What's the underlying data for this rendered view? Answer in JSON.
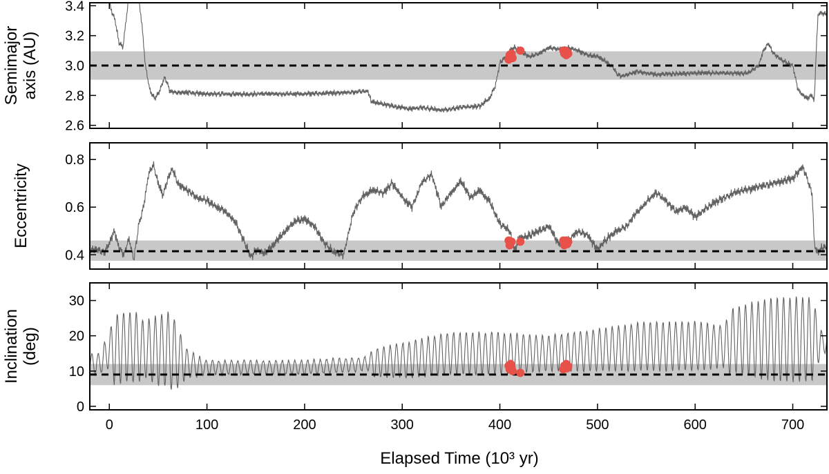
{
  "chart_data": [
    {
      "type": "line",
      "ylabel_lines": [
        "Semimajor",
        "axis (AU)"
      ],
      "ylim": [
        2.58,
        3.42
      ],
      "yticks": [
        2.6,
        2.8,
        3.0,
        3.2,
        3.4
      ],
      "tick_labels": [
        "2.6",
        "2.8",
        "3.0",
        "3.2",
        "3.4"
      ],
      "reference": {
        "value": 3.0,
        "band": [
          2.905,
          3.095
        ]
      },
      "series": {
        "name": "semimajor axis",
        "x": [
          -10,
          -3,
          0,
          3,
          6,
          10,
          14,
          17,
          20,
          25,
          28,
          30,
          33,
          37,
          42,
          47,
          52,
          57,
          62,
          70,
          80,
          100,
          150,
          200,
          250,
          265,
          268,
          280,
          300,
          310,
          320,
          340,
          360,
          380,
          385,
          390,
          392,
          395,
          400,
          405,
          410,
          415,
          420,
          430,
          440,
          450,
          460,
          470,
          480,
          490,
          500,
          510,
          517,
          520,
          525,
          540,
          560,
          600,
          640,
          655,
          665,
          670,
          675,
          680,
          690,
          700,
          705,
          710,
          715,
          720,
          722,
          724,
          726
        ],
        "y": [
          3.45,
          3.45,
          3.42,
          3.35,
          3.3,
          3.15,
          3.12,
          3.3,
          3.45,
          3.45,
          3.45,
          3.45,
          3.3,
          3.0,
          2.82,
          2.78,
          2.84,
          2.92,
          2.83,
          2.82,
          2.82,
          2.81,
          2.81,
          2.81,
          2.82,
          2.83,
          2.76,
          2.74,
          2.72,
          2.71,
          2.72,
          2.7,
          2.72,
          2.73,
          2.76,
          2.78,
          2.82,
          2.85,
          3.02,
          3.05,
          3.1,
          3.12,
          3.1,
          3.06,
          3.08,
          3.12,
          3.11,
          3.12,
          3.1,
          3.07,
          3.06,
          3.02,
          2.98,
          2.94,
          2.93,
          2.96,
          2.94,
          2.95,
          2.95,
          2.95,
          3.0,
          3.1,
          3.15,
          3.08,
          3.03,
          3.0,
          2.85,
          2.8,
          2.78,
          2.8,
          2.75,
          3.1,
          3.35
        ],
        "noise": 0.012
      },
      "close_approaches": {
        "x": [
          409,
          410,
          411,
          412,
          413,
          421,
          465,
          466,
          467,
          468,
          469,
          470
        ],
        "y": [
          3.04,
          3.07,
          3.06,
          3.08,
          3.05,
          3.1,
          3.1,
          3.08,
          3.1,
          3.07,
          3.09,
          3.08
        ]
      }
    },
    {
      "type": "line",
      "ylabel_lines": [
        "Eccentricity"
      ],
      "ylim": [
        0.34,
        0.87
      ],
      "yticks": [
        0.4,
        0.6,
        0.8
      ],
      "tick_labels": [
        "0.4",
        "0.6",
        "0.8"
      ],
      "reference": {
        "value": 0.415,
        "band": [
          0.375,
          0.46
        ]
      },
      "series": {
        "name": "eccentricity",
        "x": [
          -10,
          -5,
          0,
          5,
          10,
          15,
          20,
          25,
          30,
          35,
          40,
          45,
          50,
          55,
          60,
          65,
          70,
          80,
          90,
          100,
          110,
          120,
          130,
          140,
          145,
          150,
          160,
          170,
          180,
          190,
          200,
          210,
          220,
          230,
          240,
          250,
          260,
          270,
          280,
          290,
          300,
          310,
          320,
          330,
          340,
          350,
          360,
          370,
          380,
          390,
          400,
          410,
          415,
          420,
          430,
          440,
          450,
          460,
          470,
          480,
          490,
          500,
          510,
          520,
          530,
          540,
          550,
          560,
          570,
          580,
          590,
          600,
          620,
          640,
          660,
          680,
          700,
          710,
          715,
          720,
          722,
          725,
          730
        ],
        "y": [
          0.42,
          0.41,
          0.45,
          0.5,
          0.43,
          0.4,
          0.47,
          0.38,
          0.52,
          0.6,
          0.73,
          0.78,
          0.7,
          0.65,
          0.72,
          0.76,
          0.7,
          0.67,
          0.64,
          0.63,
          0.6,
          0.58,
          0.53,
          0.44,
          0.39,
          0.42,
          0.41,
          0.45,
          0.5,
          0.54,
          0.55,
          0.52,
          0.45,
          0.41,
          0.4,
          0.58,
          0.65,
          0.67,
          0.66,
          0.7,
          0.64,
          0.6,
          0.7,
          0.74,
          0.6,
          0.66,
          0.71,
          0.64,
          0.67,
          0.62,
          0.53,
          0.5,
          0.42,
          0.47,
          0.48,
          0.5,
          0.52,
          0.45,
          0.46,
          0.5,
          0.48,
          0.42,
          0.47,
          0.5,
          0.52,
          0.58,
          0.62,
          0.66,
          0.63,
          0.58,
          0.6,
          0.56,
          0.62,
          0.66,
          0.68,
          0.7,
          0.72,
          0.77,
          0.72,
          0.65,
          0.45,
          0.41,
          0.43
        ],
        "noise": 0.012
      },
      "close_approaches": {
        "x": [
          409,
          410,
          411,
          412,
          421,
          465,
          466,
          467,
          468,
          469,
          470
        ],
        "y": [
          0.46,
          0.44,
          0.45,
          0.455,
          0.455,
          0.46,
          0.44,
          0.45,
          0.46,
          0.445,
          0.455
        ]
      }
    },
    {
      "type": "line",
      "ylabel_lines": [
        "Inclination",
        "(deg)"
      ],
      "ylim": [
        -1,
        35
      ],
      "yticks": [
        0,
        10,
        20,
        30
      ],
      "tick_labels": [
        "0",
        "10",
        "20",
        "30"
      ],
      "reference": {
        "value": 9,
        "band": [
          6,
          12
        ]
      },
      "series": {
        "name": "inclination",
        "centers_x": [
          -10,
          0,
          20,
          40,
          60,
          80,
          100,
          150,
          200,
          260,
          300,
          350,
          400,
          450,
          500,
          550,
          600,
          630,
          640,
          680,
          720,
          730
        ],
        "centers_y": [
          12,
          16,
          17,
          16,
          16,
          12,
          11,
          11,
          11,
          12,
          13,
          15,
          15,
          15,
          16,
          17,
          17,
          17,
          19,
          19,
          19,
          18
        ],
        "amp_x": [
          -10,
          0,
          5,
          30,
          35,
          50,
          65,
          80,
          100,
          150,
          200,
          250,
          265,
          270,
          300,
          350,
          400,
          450,
          500,
          550,
          600,
          630,
          635,
          680,
          720,
          730
        ],
        "amp_y": [
          3,
          5,
          10,
          10,
          8,
          10,
          11,
          4,
          2,
          2,
          2,
          2,
          2,
          4,
          5,
          6,
          6,
          5,
          6,
          7,
          7,
          6,
          9,
          12,
          12,
          3
        ],
        "period": 6.5
      },
      "close_approaches": {
        "x": [
          409,
          410,
          411,
          412,
          413,
          421,
          465,
          466,
          467,
          468,
          469,
          470
        ],
        "y": [
          11.5,
          10.5,
          12,
          11,
          10,
          9.5,
          10.5,
          11.5,
          11,
          12,
          10.8,
          11.3
        ]
      }
    }
  ],
  "x_axis": {
    "label": "Elapsed Time (10³ yr)",
    "xlim": [
      -20,
      735
    ],
    "ticks": [
      0,
      100,
      200,
      300,
      400,
      500,
      600,
      700
    ],
    "tick_labels": [
      "0",
      "100",
      "200",
      "300",
      "400",
      "500",
      "600",
      "700"
    ]
  },
  "colors": {
    "line": "#606060",
    "band": "#c8c8c8",
    "reference": "#000000",
    "markers": "#e8504a"
  }
}
